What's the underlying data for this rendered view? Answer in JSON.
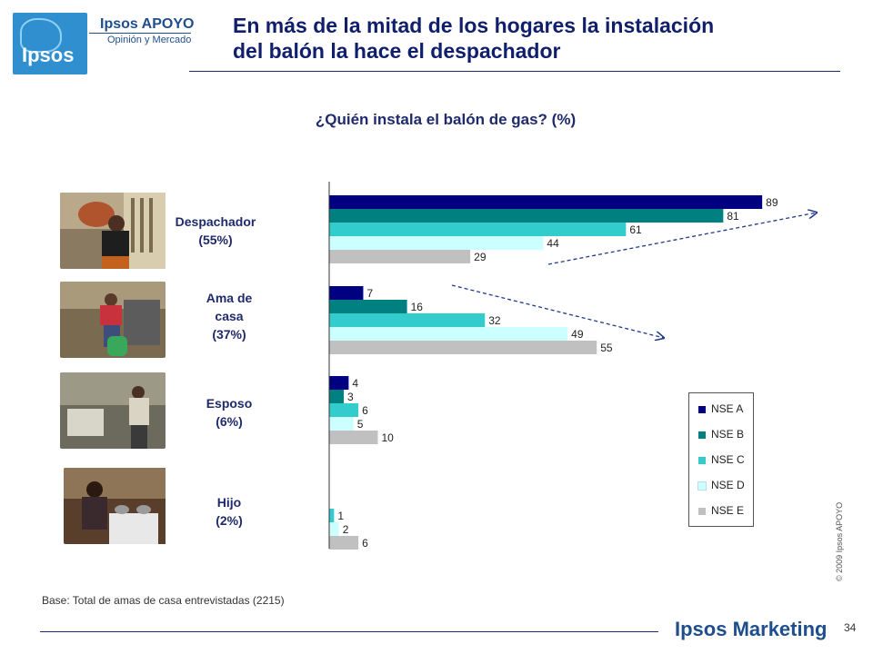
{
  "header": {
    "logo_text": "Ipsos",
    "brand": "Ipsos APOYO",
    "brand_sub": "Opinión y Mercado",
    "title_line1": "En más de la mitad de los hogares la instalación",
    "title_line2": "del balón la hace el despachador"
  },
  "chart_data": {
    "type": "bar",
    "orientation": "horizontal",
    "title": "¿Quién instala el balón de gas? (%)",
    "categories": [
      "Despachador (55%)",
      "Ama de casa (37%)",
      "Esposo (6%)",
      "Hijo (2%)"
    ],
    "category_lines": [
      [
        "Despachador",
        "(55%)"
      ],
      [
        "Ama de",
        "casa",
        "(37%)"
      ],
      [
        "Esposo",
        "(6%)"
      ],
      [
        "Hijo",
        "(2%)"
      ]
    ],
    "series": [
      {
        "name": "NSE A",
        "color": "#000080",
        "values": [
          89,
          7,
          4,
          null
        ]
      },
      {
        "name": "NSE B",
        "color": "#008080",
        "values": [
          81,
          16,
          3,
          null
        ]
      },
      {
        "name": "NSE C",
        "color": "#33cccc",
        "values": [
          61,
          32,
          6,
          1
        ]
      },
      {
        "name": "NSE D",
        "color": "#ccffff",
        "values": [
          44,
          49,
          5,
          2
        ]
      },
      {
        "name": "NSE E",
        "color": "#c0c0c0",
        "values": [
          29,
          55,
          10,
          6
        ]
      }
    ],
    "xlim": [
      0,
      100
    ],
    "legend_position": "bottom-right",
    "grid": false
  },
  "footer": {
    "base_note": "Base: Total de amas de casa entrevistadas (2215)",
    "copyright": "© 2009 Ipsos APOYO",
    "brand": "Ipsos Marketing",
    "page_number": "34"
  }
}
